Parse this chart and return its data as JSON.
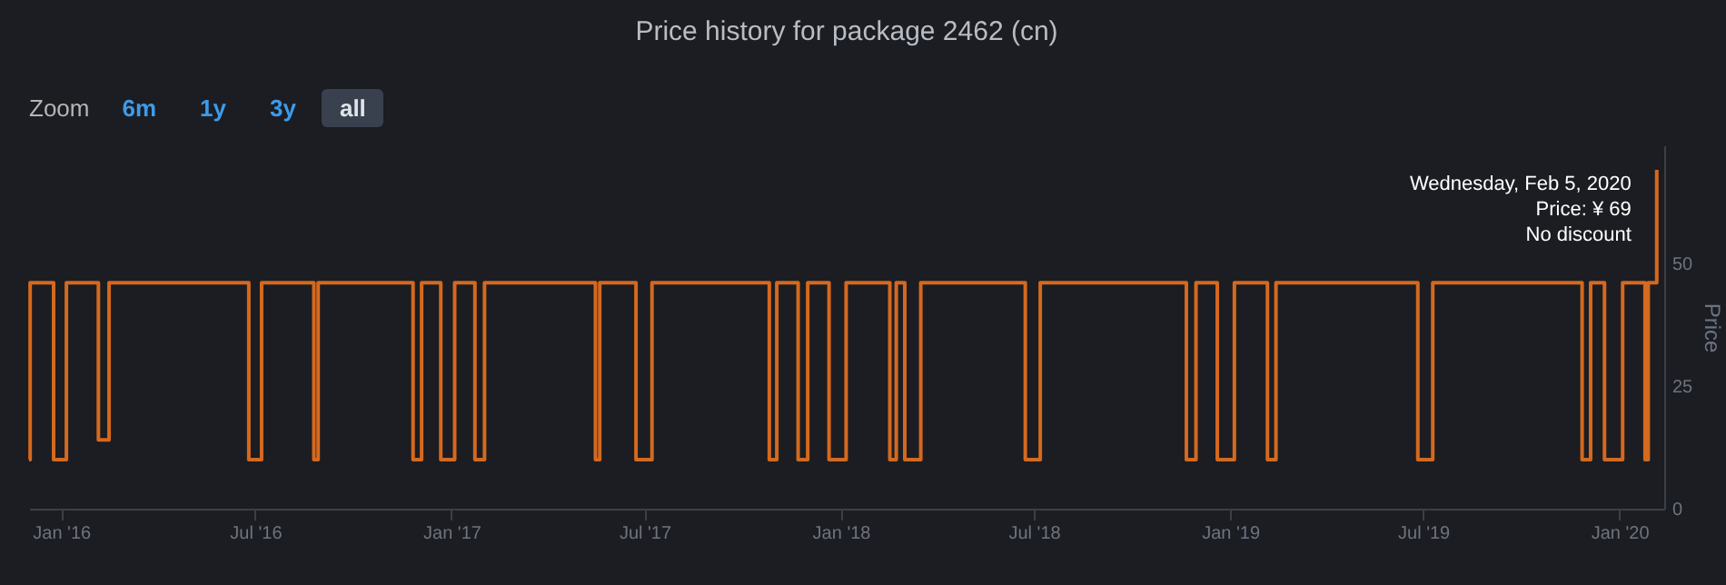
{
  "chart_data": {
    "type": "step",
    "title": "Price history for package 2462 (cn)",
    "ylabel": "Price",
    "annotations": [
      "Zoom",
      "6m",
      "1y",
      "3y",
      "all",
      {
        "text": "Wednesday, Feb 5, 2020\nPrice: ¥ 69\nNo discount",
        "x": "2020-02-05",
        "y": 69
      }
    ],
    "x": [
      "2015-12-02",
      "2015-12-03",
      "2015-12-25",
      "2016-01-06",
      "2016-02-05",
      "2016-02-15",
      "2016-06-25",
      "2016-07-07",
      "2016-08-25",
      "2016-08-29",
      "2016-11-26",
      "2016-12-04",
      "2016-12-22",
      "2017-01-04",
      "2017-01-23",
      "2017-02-01",
      "2017-05-16",
      "2017-05-20",
      "2017-06-23",
      "2017-07-08",
      "2017-10-26",
      "2017-11-02",
      "2017-11-22",
      "2017-12-01",
      "2017-12-21",
      "2018-01-06",
      "2018-02-16",
      "2018-02-22",
      "2018-03-02",
      "2018-03-17",
      "2018-06-23",
      "2018-07-07",
      "2018-11-21",
      "2018-11-30",
      "2018-12-20",
      "2019-01-05",
      "2019-02-05",
      "2019-02-13",
      "2019-06-26",
      "2019-07-10",
      "2019-11-27",
      "2019-12-05",
      "2019-12-18",
      "2020-01-04",
      "2020-01-25",
      "2020-01-28",
      "2020-02-05"
    ],
    "series": [
      {
        "color": "#d4691f",
        "values": [
          10,
          46,
          10,
          46,
          14,
          46,
          10,
          46,
          10,
          46,
          10,
          46,
          10,
          46,
          10,
          46,
          10,
          46,
          10,
          46,
          10,
          46,
          10,
          46,
          10,
          46,
          10,
          46,
          10,
          46,
          10,
          46,
          10,
          46,
          10,
          46,
          10,
          46,
          10,
          46,
          10,
          46,
          10,
          46,
          10,
          46,
          69
        ]
      }
    ],
    "xlim": [
      "2015-12-02",
      "2020-02-12"
    ],
    "xticks": [
      {
        "value": "2016-01-01",
        "label": "Jan '16"
      },
      {
        "value": "2016-07-01",
        "label": "Jul '16"
      },
      {
        "value": "2017-01-01",
        "label": "Jan '17"
      },
      {
        "value": "2017-07-01",
        "label": "Jul '17"
      },
      {
        "value": "2018-01-01",
        "label": "Jan '18"
      },
      {
        "value": "2018-07-01",
        "label": "Jul '18"
      },
      {
        "value": "2019-01-01",
        "label": "Jan '19"
      },
      {
        "value": "2019-07-01",
        "label": "Jul '19"
      },
      {
        "value": "2020-01-01",
        "label": "Jan '20"
      }
    ],
    "ylim": [
      0,
      74
    ],
    "yticks": [
      0,
      25,
      50
    ]
  }
}
